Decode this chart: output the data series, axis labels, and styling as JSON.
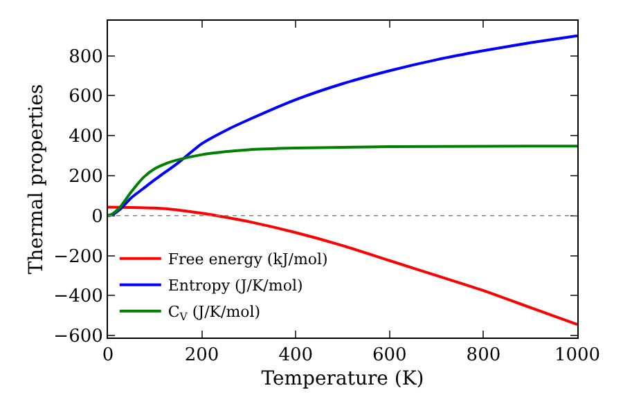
{
  "chart_data": {
    "type": "line",
    "xlabel": "Temperature (K)",
    "ylabel": "Thermal properties",
    "xlim": [
      0,
      1000
    ],
    "xticks": [
      0,
      200,
      400,
      600,
      800,
      1000
    ],
    "ylim": [
      -610,
      975
    ],
    "yticks": [
      -600,
      -400,
      -200,
      0,
      200,
      400,
      600,
      800
    ],
    "legend": "bottom left",
    "line_style": "solid",
    "ref_lines": [
      {
        "axis": "y",
        "value": 0,
        "color": "#808080",
        "line_style": "dotted"
      }
    ],
    "series": [
      {
        "name": "Free energy (kJ/mol)",
        "color": "#ff0000",
        "x": [
          0,
          50,
          100,
          150,
          200,
          250,
          300,
          400,
          500,
          600,
          700,
          800,
          900,
          1000
        ],
        "values": [
          42,
          41,
          38,
          28,
          12,
          -8,
          -30,
          -85,
          -150,
          -225,
          -300,
          -375,
          -460,
          -545
        ]
      },
      {
        "name": "Entropy (J/K/mol)",
        "color": "#0000ff",
        "x": [
          0,
          10,
          25,
          50,
          75,
          100,
          150,
          200,
          250,
          300,
          400,
          500,
          600,
          700,
          800,
          900,
          1000
        ],
        "values": [
          0,
          5,
          30,
          90,
          135,
          180,
          265,
          360,
          425,
          480,
          580,
          660,
          725,
          780,
          825,
          865,
          900
        ]
      },
      {
        "name": "C$_{V}$ (J/K/mol)",
        "color": "#008000",
        "x": [
          0,
          10,
          25,
          50,
          75,
          100,
          125,
          150,
          200,
          250,
          300,
          400,
          500,
          600,
          800,
          1000
        ],
        "values": [
          0,
          10,
          40,
          120,
          190,
          235,
          262,
          280,
          305,
          320,
          330,
          338,
          342,
          345,
          347,
          348
        ]
      }
    ]
  }
}
